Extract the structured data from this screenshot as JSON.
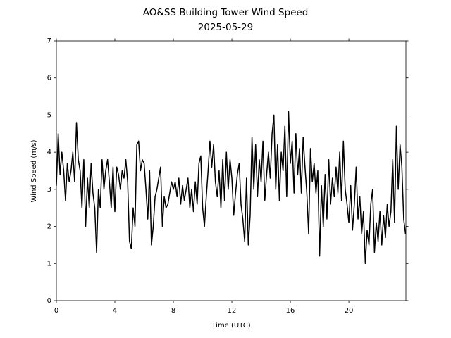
{
  "chart_data": {
    "type": "line",
    "title": "AO&SS Building Tower Wind Speed",
    "subtitle": "2025-05-29",
    "xlabel": "Time (UTC)",
    "ylabel": "Wind Speed (m/s)",
    "xlim": [
      0,
      23.9
    ],
    "ylim": [
      0,
      7
    ],
    "xticks": [
      0,
      4,
      8,
      12,
      16,
      20
    ],
    "yticks": [
      0,
      1,
      2,
      3,
      4,
      5,
      6,
      7
    ],
    "grid": false,
    "x": [
      0,
      0.125,
      0.25,
      0.375,
      0.5,
      0.625,
      0.75,
      0.875,
      1,
      1.125,
      1.25,
      1.375,
      1.5,
      1.625,
      1.75,
      1.875,
      2,
      2.125,
      2.25,
      2.375,
      2.5,
      2.625,
      2.75,
      2.875,
      3,
      3.125,
      3.25,
      3.375,
      3.5,
      3.625,
      3.75,
      3.875,
      4,
      4.125,
      4.25,
      4.375,
      4.5,
      4.625,
      4.75,
      4.875,
      5,
      5.125,
      5.25,
      5.375,
      5.5,
      5.625,
      5.75,
      5.875,
      6,
      6.125,
      6.25,
      6.375,
      6.5,
      6.625,
      6.75,
      6.875,
      7,
      7.125,
      7.25,
      7.375,
      7.5,
      7.625,
      7.75,
      7.875,
      8,
      8.125,
      8.25,
      8.375,
      8.5,
      8.625,
      8.75,
      8.875,
      9,
      9.125,
      9.25,
      9.375,
      9.5,
      9.625,
      9.75,
      9.875,
      10,
      10.125,
      10.25,
      10.375,
      10.5,
      10.625,
      10.75,
      10.875,
      11,
      11.125,
      11.25,
      11.375,
      11.5,
      11.625,
      11.75,
      11.875,
      12,
      12.125,
      12.25,
      12.375,
      12.5,
      12.625,
      12.75,
      12.875,
      13,
      13.125,
      13.25,
      13.375,
      13.5,
      13.625,
      13.75,
      13.875,
      14,
      14.125,
      14.25,
      14.375,
      14.5,
      14.625,
      14.75,
      14.875,
      15,
      15.125,
      15.25,
      15.375,
      15.5,
      15.625,
      15.75,
      15.875,
      16,
      16.125,
      16.25,
      16.375,
      16.5,
      16.625,
      16.75,
      16.875,
      17,
      17.125,
      17.25,
      17.375,
      17.5,
      17.625,
      17.75,
      17.875,
      18,
      18.125,
      18.25,
      18.375,
      18.5,
      18.625,
      18.75,
      18.875,
      19,
      19.125,
      19.25,
      19.375,
      19.5,
      19.625,
      19.75,
      19.875,
      20,
      20.125,
      20.25,
      20.375,
      20.5,
      20.625,
      20.75,
      20.875,
      21,
      21.125,
      21.25,
      21.375,
      21.5,
      21.625,
      21.75,
      21.875,
      22,
      22.125,
      22.25,
      22.375,
      22.5,
      22.625,
      22.75,
      22.875,
      23,
      23.125,
      23.25,
      23.375,
      23.5,
      23.625,
      23.75,
      23.875
    ],
    "series": [
      {
        "name": "Wind Speed",
        "color": "#000000",
        "values": [
          3.1,
          4.5,
          3.4,
          4.0,
          3.5,
          2.7,
          3.7,
          3.2,
          3.5,
          4.0,
          3.2,
          4.8,
          3.8,
          3.5,
          2.5,
          3.8,
          2.0,
          3.3,
          2.5,
          3.7,
          2.9,
          2.5,
          1.3,
          3.0,
          2.5,
          3.8,
          3.0,
          3.5,
          3.8,
          3.2,
          2.5,
          3.6,
          2.4,
          3.6,
          3.4,
          3.0,
          3.5,
          3.3,
          3.8,
          3.2,
          1.6,
          1.4,
          2.5,
          2.0,
          4.2,
          4.3,
          3.5,
          3.8,
          3.7,
          3.0,
          2.2,
          3.5,
          1.5,
          2.0,
          2.8,
          3.0,
          3.3,
          3.6,
          2.0,
          2.8,
          2.5,
          2.6,
          2.9,
          3.2,
          3.0,
          3.2,
          2.8,
          3.3,
          2.6,
          3.1,
          2.7,
          3.0,
          3.3,
          2.5,
          3.0,
          2.4,
          3.2,
          2.6,
          3.7,
          3.9,
          2.5,
          2.0,
          2.8,
          3.5,
          4.3,
          3.6,
          4.2,
          3.2,
          2.8,
          3.5,
          2.5,
          3.8,
          2.7,
          4.0,
          3.0,
          3.8,
          3.3,
          2.3,
          2.9,
          3.4,
          3.7,
          2.6,
          2.2,
          1.6,
          3.3,
          1.5,
          2.3,
          4.4,
          3.0,
          4.2,
          2.8,
          3.8,
          3.2,
          4.3,
          2.7,
          3.4,
          4.0,
          3.3,
          4.5,
          5.0,
          3.0,
          4.2,
          2.7,
          4.0,
          3.5,
          4.7,
          2.8,
          5.1,
          3.7,
          4.3,
          2.9,
          4.5,
          3.4,
          4.1,
          2.9,
          4.4,
          3.6,
          2.9,
          1.8,
          4.1,
          3.2,
          3.7,
          2.9,
          3.5,
          1.2,
          3.1,
          2.0,
          3.4,
          2.2,
          3.8,
          2.6,
          3.3,
          2.8,
          3.6,
          2.9,
          4.0,
          2.7,
          4.3,
          3.0,
          2.6,
          2.1,
          3.1,
          1.9,
          2.6,
          3.6,
          2.2,
          2.8,
          1.8,
          2.4,
          1.0,
          1.9,
          1.5,
          2.6,
          3.0,
          1.3,
          2.1,
          1.6,
          2.4,
          1.5,
          2.3,
          1.7,
          2.6,
          2.0,
          2.4,
          3.8,
          2.1,
          4.7,
          3.0,
          4.2,
          3.6,
          2.2,
          1.8
        ]
      }
    ]
  }
}
